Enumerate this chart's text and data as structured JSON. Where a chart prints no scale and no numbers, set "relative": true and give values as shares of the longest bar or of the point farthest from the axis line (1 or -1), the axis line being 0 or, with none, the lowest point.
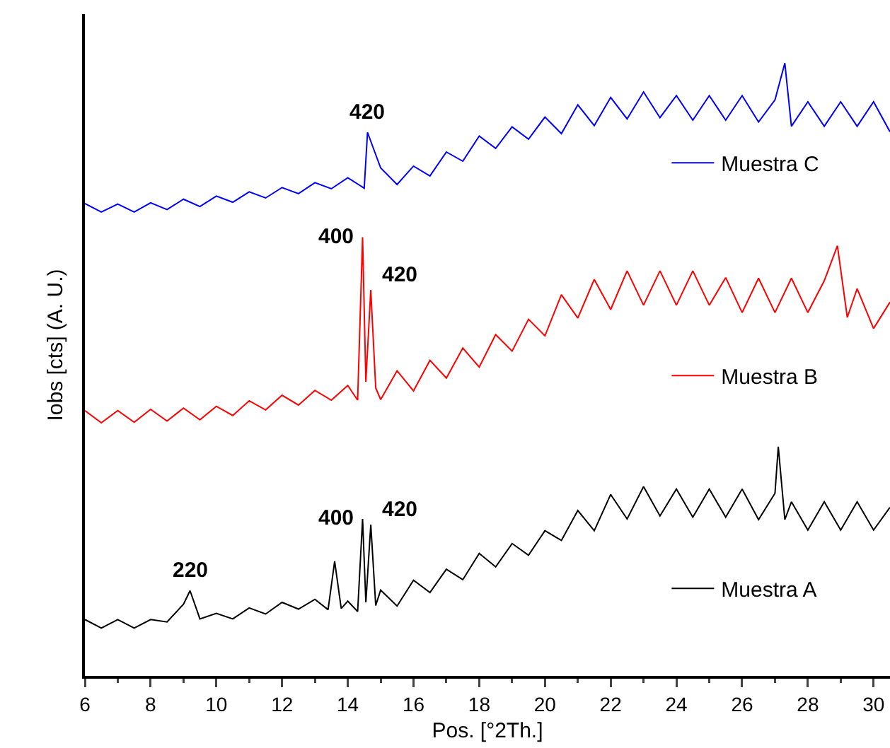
{
  "chart_data": {
    "type": "line",
    "relative": true,
    "xlabel": "Pos. [°2Th.]",
    "ylabel": "Iobs [cts] (A. U.)",
    "xlim": [
      6,
      30.5
    ],
    "xticks": [
      6,
      8,
      10,
      12,
      14,
      16,
      18,
      20,
      22,
      24,
      26,
      28,
      30
    ],
    "grid": false,
    "legend": "right",
    "marker": "none",
    "line_style": "solid",
    "series": [
      {
        "name": "Muestra A",
        "color": "#000000",
        "x": [
          6,
          6.5,
          7,
          7.5,
          8,
          8.5,
          9,
          9.2,
          9.5,
          10,
          10.5,
          11,
          11.5,
          12,
          12.5,
          13,
          13.4,
          13.6,
          13.8,
          14,
          14.3,
          14.45,
          14.55,
          14.7,
          14.85,
          15,
          15.5,
          16,
          16.5,
          17,
          17.5,
          18,
          18.5,
          19,
          19.5,
          20,
          20.5,
          21,
          21.5,
          22,
          22.5,
          23,
          23.5,
          24,
          24.5,
          25,
          25.5,
          26,
          26.5,
          27,
          27.1,
          27.3,
          27.5,
          28,
          28.5,
          29,
          29.5,
          30,
          30.5
        ],
        "values": [
          0.092,
          0.078,
          0.092,
          0.078,
          0.092,
          0.088,
          0.117,
          0.139,
          0.093,
          0.102,
          0.093,
          0.111,
          0.101,
          0.12,
          0.109,
          0.125,
          0.108,
          0.187,
          0.11,
          0.122,
          0.105,
          0.256,
          0.12,
          0.247,
          0.115,
          0.14,
          0.114,
          0.156,
          0.136,
          0.174,
          0.157,
          0.2,
          0.178,
          0.216,
          0.197,
          0.237,
          0.221,
          0.27,
          0.237,
          0.296,
          0.256,
          0.309,
          0.261,
          0.305,
          0.259,
          0.305,
          0.259,
          0.305,
          0.255,
          0.298,
          0.374,
          0.255,
          0.284,
          0.238,
          0.284,
          0.238,
          0.284,
          0.238,
          0.275
        ]
      },
      {
        "name": "Muestra B",
        "color": "#ff0000",
        "x": [
          6,
          6.5,
          7,
          7.5,
          8,
          8.5,
          9,
          9.5,
          10,
          10.5,
          11,
          11.5,
          12,
          12.5,
          13,
          13.5,
          14,
          14.3,
          14.45,
          14.55,
          14.7,
          14.85,
          15,
          15.5,
          16,
          16.5,
          17,
          17.5,
          18,
          18.5,
          19,
          19.5,
          20,
          20.5,
          21,
          21.5,
          22,
          22.5,
          23,
          23.5,
          24,
          24.5,
          25,
          25.5,
          26,
          26.5,
          27,
          27.5,
          28,
          28.5,
          28.9,
          29.2,
          29.5,
          30,
          30.5
        ],
        "values": [
          0.433,
          0.413,
          0.433,
          0.414,
          0.435,
          0.416,
          0.437,
          0.418,
          0.44,
          0.425,
          0.449,
          0.434,
          0.458,
          0.442,
          0.466,
          0.45,
          0.474,
          0.45,
          0.716,
          0.48,
          0.63,
          0.47,
          0.451,
          0.498,
          0.465,
          0.515,
          0.486,
          0.535,
          0.504,
          0.557,
          0.53,
          0.582,
          0.555,
          0.622,
          0.584,
          0.647,
          0.598,
          0.661,
          0.605,
          0.661,
          0.605,
          0.661,
          0.605,
          0.65,
          0.593,
          0.649,
          0.593,
          0.649,
          0.593,
          0.645,
          0.702,
          0.585,
          0.632,
          0.567,
          0.61
        ]
      },
      {
        "name": "Muestra C",
        "color": "#0000ff",
        "x": [
          6,
          6.5,
          7,
          7.5,
          8,
          8.5,
          9,
          9.5,
          10,
          10.5,
          11,
          11.5,
          12,
          12.5,
          13,
          13.5,
          14,
          14.5,
          14.6,
          15,
          15.5,
          16,
          16.5,
          17,
          17.5,
          18,
          18.5,
          19,
          19.5,
          20,
          20.5,
          21,
          21.5,
          22,
          22.5,
          23,
          23.5,
          24,
          24.5,
          25,
          25.5,
          26,
          26.5,
          27,
          27.3,
          27.5,
          28,
          28.5,
          29,
          29.5,
          30,
          30.5
        ],
        "values": [
          0.771,
          0.757,
          0.77,
          0.757,
          0.772,
          0.761,
          0.778,
          0.766,
          0.783,
          0.773,
          0.79,
          0.78,
          0.797,
          0.787,
          0.805,
          0.795,
          0.813,
          0.796,
          0.887,
          0.829,
          0.802,
          0.832,
          0.816,
          0.855,
          0.84,
          0.881,
          0.861,
          0.896,
          0.876,
          0.912,
          0.885,
          0.932,
          0.898,
          0.944,
          0.909,
          0.953,
          0.911,
          0.947,
          0.907,
          0.947,
          0.907,
          0.947,
          0.904,
          0.94,
          1.0,
          0.897,
          0.937,
          0.897,
          0.937,
          0.897,
          0.937,
          0.888
        ]
      }
    ],
    "annotations": [
      {
        "text": "220",
        "x": 9.2,
        "y": 0.139
      },
      {
        "text": "400",
        "x": 14.45,
        "y": 0.256
      },
      {
        "text": "420",
        "x": 14.7,
        "y": 0.247
      },
      {
        "text": "400",
        "x": 14.45,
        "y": 0.716
      },
      {
        "text": "420",
        "x": 14.7,
        "y": 0.63
      },
      {
        "text": "420",
        "x": 14.6,
        "y": 0.887
      }
    ]
  }
}
